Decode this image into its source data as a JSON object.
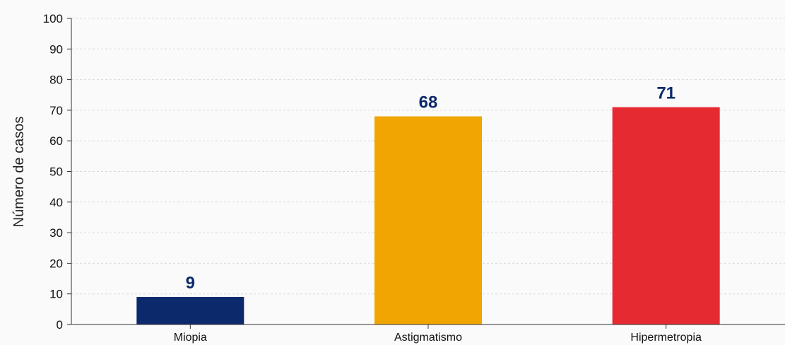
{
  "chart_data": {
    "type": "bar",
    "title": "",
    "xlabel": "",
    "ylabel": "Número de casos",
    "ylim": [
      0,
      100
    ],
    "yticks": [
      0,
      10,
      20,
      30,
      40,
      50,
      60,
      70,
      80,
      90,
      100
    ],
    "grid": true,
    "legend": "none",
    "categories": [
      "Miopia",
      "Astigmatismo",
      "Hipermetropia"
    ],
    "values": [
      9,
      68,
      71
    ],
    "colors": [
      "#0c2a6b",
      "#f0a500",
      "#e62a32"
    ],
    "label_color": "#0c2a6b"
  }
}
